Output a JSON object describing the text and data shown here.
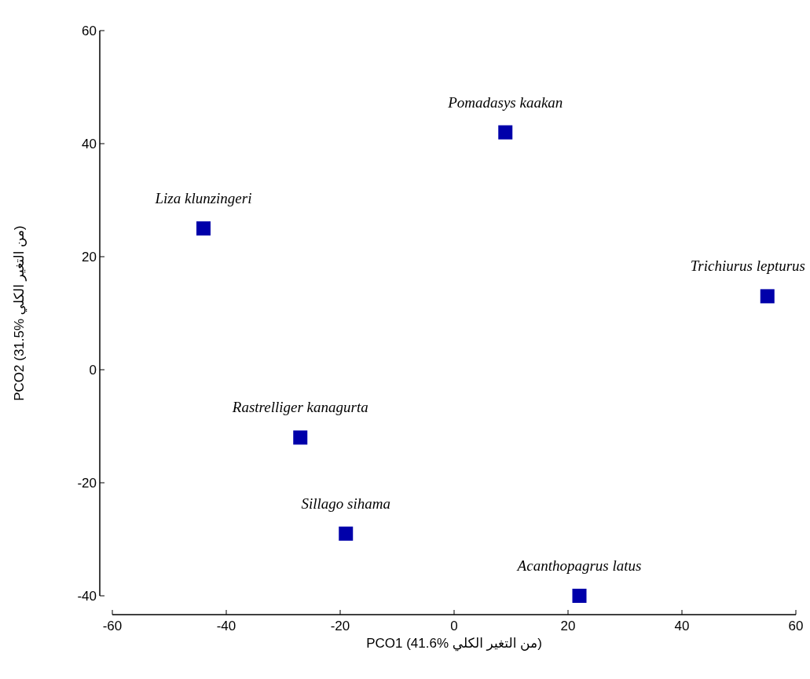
{
  "chart_data": {
    "type": "scatter",
    "xlabel": "PCO1 (41.6% من التغير الكلي)",
    "ylabel": "PCO2 (31.5% من التغير الكلي)",
    "x": [
      9,
      -44,
      55,
      -27,
      -19,
      22
    ],
    "series": [
      {
        "color": "#0000aa",
        "values": [
          42,
          25,
          13,
          -12,
          -29,
          -40
        ]
      }
    ],
    "marker": "square",
    "xlim": [
      -60,
      60
    ],
    "xticks": [
      -60,
      -40,
      -20,
      0,
      20,
      40,
      60
    ],
    "ylim": [
      -40,
      60
    ],
    "yticks": [
      -40,
      -20,
      0,
      20,
      40,
      60
    ],
    "grid": false,
    "annotations": [
      {
        "text": "Pomadasys kaakan",
        "x": 9,
        "y": 42
      },
      {
        "text": "Liza klunzingeri",
        "x": -44,
        "y": 25
      },
      {
        "text": "Trichiurus lepturus",
        "x": 55,
        "y": 13
      },
      {
        "text": "Rastrelliger kanagurta",
        "x": -27,
        "y": -12
      },
      {
        "text": "Sillago sihama",
        "x": -19,
        "y": -29
      },
      {
        "text": "Acanthopagrus latus",
        "x": 22,
        "y": -40
      }
    ]
  }
}
